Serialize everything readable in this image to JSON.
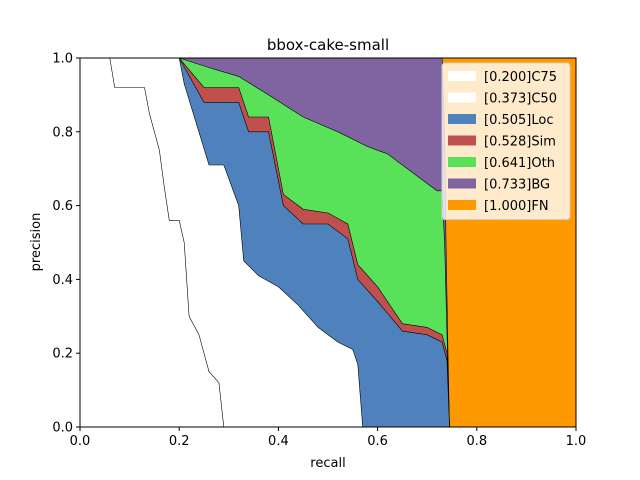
{
  "chart_data": {
    "type": "area",
    "title": "bbox-cake-small",
    "xlabel": "recall",
    "ylabel": "precision",
    "xlim": [
      0,
      1
    ],
    "ylim": [
      0,
      1
    ],
    "xticks": [
      "0.0",
      "0.2",
      "0.4",
      "0.6",
      "0.8",
      "1.0"
    ],
    "yticks": [
      "0.0",
      "0.2",
      "0.4",
      "0.6",
      "0.8",
      "1.0"
    ],
    "grid": false,
    "legend_position": "top-right",
    "stacked": true,
    "series": [
      {
        "name": "[1.000]FN",
        "color": "#ff9900",
        "points": [
          [
            0,
            1
          ],
          [
            1,
            1
          ],
          [
            1,
            0
          ]
        ]
      },
      {
        "name": "[0.733]BG",
        "color": "#8064a2",
        "points": [
          [
            0,
            1
          ],
          [
            0.2,
            1
          ],
          [
            0.73,
            1
          ],
          [
            0.735,
            0.8
          ],
          [
            0.738,
            0.5
          ],
          [
            0.742,
            0.2
          ],
          [
            0.745,
            0
          ]
        ]
      },
      {
        "name": "[0.641]Oth",
        "color": "#5ae15a",
        "points": [
          [
            0,
            1
          ],
          [
            0.2,
            1
          ],
          [
            0.27,
            0.97
          ],
          [
            0.32,
            0.95
          ],
          [
            0.38,
            0.9
          ],
          [
            0.45,
            0.84
          ],
          [
            0.52,
            0.8
          ],
          [
            0.58,
            0.76
          ],
          [
            0.62,
            0.74
          ],
          [
            0.66,
            0.7
          ],
          [
            0.7,
            0.66
          ],
          [
            0.72,
            0.64
          ],
          [
            0.73,
            0.64
          ],
          [
            0.735,
            0.5
          ],
          [
            0.74,
            0.25
          ],
          [
            0.745,
            0
          ]
        ]
      },
      {
        "name": "[0.528]Sim",
        "color": "#c0504d",
        "points": [
          [
            0,
            1
          ],
          [
            0.2,
            1
          ],
          [
            0.25,
            0.92
          ],
          [
            0.32,
            0.92
          ],
          [
            0.34,
            0.84
          ],
          [
            0.38,
            0.84
          ],
          [
            0.41,
            0.63
          ],
          [
            0.45,
            0.59
          ],
          [
            0.5,
            0.58
          ],
          [
            0.54,
            0.55
          ],
          [
            0.56,
            0.44
          ],
          [
            0.6,
            0.38
          ],
          [
            0.65,
            0.28
          ],
          [
            0.7,
            0.27
          ],
          [
            0.73,
            0.25
          ],
          [
            0.74,
            0.2
          ],
          [
            0.745,
            0
          ]
        ]
      },
      {
        "name": "[0.505]Loc",
        "color": "#4f81bd",
        "points": [
          [
            0,
            1
          ],
          [
            0.2,
            1
          ],
          [
            0.25,
            0.88
          ],
          [
            0.32,
            0.88
          ],
          [
            0.34,
            0.8
          ],
          [
            0.38,
            0.8
          ],
          [
            0.41,
            0.6
          ],
          [
            0.45,
            0.55
          ],
          [
            0.5,
            0.55
          ],
          [
            0.54,
            0.51
          ],
          [
            0.56,
            0.4
          ],
          [
            0.6,
            0.34
          ],
          [
            0.65,
            0.26
          ],
          [
            0.7,
            0.25
          ],
          [
            0.73,
            0.23
          ],
          [
            0.74,
            0.18
          ],
          [
            0.745,
            0
          ]
        ]
      },
      {
        "name": "[0.373]C50",
        "color": "#ffffff",
        "points": [
          [
            0,
            1
          ],
          [
            0.2,
            1
          ],
          [
            0.21,
            0.93
          ],
          [
            0.26,
            0.71
          ],
          [
            0.29,
            0.71
          ],
          [
            0.32,
            0.6
          ],
          [
            0.33,
            0.45
          ],
          [
            0.36,
            0.41
          ],
          [
            0.4,
            0.38
          ],
          [
            0.44,
            0.33
          ],
          [
            0.48,
            0.27
          ],
          [
            0.52,
            0.23
          ],
          [
            0.55,
            0.21
          ],
          [
            0.56,
            0.17
          ],
          [
            0.57,
            0
          ]
        ]
      },
      {
        "name": "[0.200]C75",
        "color": "#ffffff",
        "points": [
          [
            0,
            1
          ],
          [
            0.06,
            1
          ],
          [
            0.07,
            0.92
          ],
          [
            0.13,
            0.92
          ],
          [
            0.14,
            0.85
          ],
          [
            0.16,
            0.75
          ],
          [
            0.17,
            0.65
          ],
          [
            0.18,
            0.56
          ],
          [
            0.2,
            0.56
          ],
          [
            0.21,
            0.5
          ],
          [
            0.22,
            0.3
          ],
          [
            0.24,
            0.25
          ],
          [
            0.26,
            0.15
          ],
          [
            0.28,
            0.12
          ],
          [
            0.29,
            0
          ]
        ]
      }
    ]
  }
}
